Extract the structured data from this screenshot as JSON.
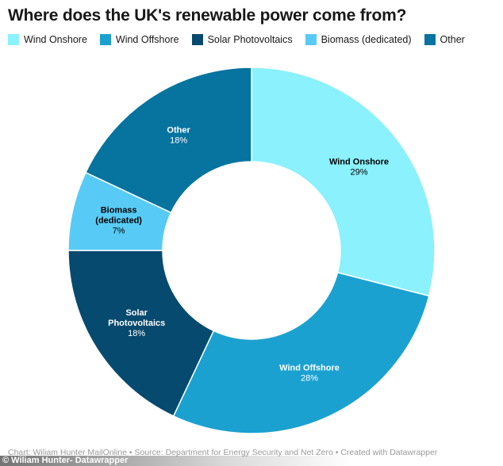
{
  "chart_data": {
    "type": "pie",
    "title": "Where does the UK's renewable power come from?",
    "donut": true,
    "legend_position": "top-left",
    "slices": [
      {
        "name": "Wind Onshore",
        "label_lines": [
          "Wind Onshore"
        ],
        "value": 29,
        "value_label": "29%",
        "color": "#8af1fd",
        "text_color": "#000000"
      },
      {
        "name": "Wind Offshore",
        "label_lines": [
          "Wind Offshore"
        ],
        "value": 28,
        "value_label": "28%",
        "color": "#1ba1d0",
        "text_color": "#ffffff"
      },
      {
        "name": "Solar Photovoltaics",
        "label_lines": [
          "Solar",
          "Photovoltaics"
        ],
        "value": 18,
        "value_label": "18%",
        "color": "#064a6f",
        "text_color": "#ffffff"
      },
      {
        "name": "Biomass (dedicated)",
        "label_lines": [
          "Biomass",
          "(dedicated)"
        ],
        "value": 7,
        "value_label": "7%",
        "color": "#57cbf5",
        "text_color": "#000000"
      },
      {
        "name": "Other",
        "label_lines": [
          "Other"
        ],
        "value": 18,
        "value_label": "18%",
        "color": "#07739f",
        "text_color": "#ffffff"
      }
    ]
  },
  "footer": {
    "source": "Chart: Wiliam Hunter MailOnline • Source: Department for Energy Security and Net Zero • Created with Datawrapper",
    "credit": "© Wiliam Hunter- Datawrapper"
  }
}
